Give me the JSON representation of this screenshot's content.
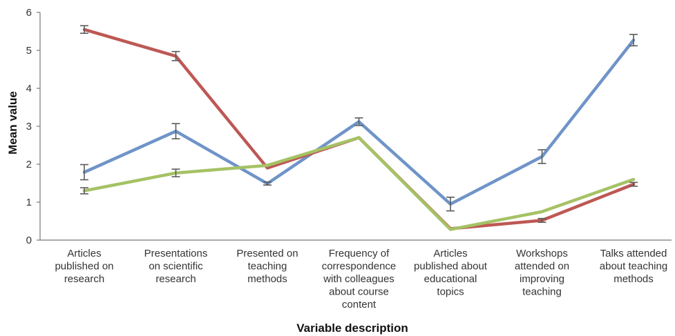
{
  "chart_data": {
    "type": "line",
    "title": "",
    "xlabel": "Variable description",
    "ylabel": "Mean value",
    "ylim": [
      0,
      6
    ],
    "yticks": [
      0,
      1,
      2,
      3,
      4,
      5,
      6
    ],
    "grid": false,
    "legend": "none",
    "categories": [
      "Articles published on research",
      "Presentations on scientific research",
      "Presented on teaching methods",
      "Frequency of correspondence with colleagues about course content",
      "Articles published about educational topics",
      "Workshops attended on improving teaching",
      "Talks attended about teaching methods"
    ],
    "category_lines": [
      [
        "Articles",
        "published on",
        "research"
      ],
      [
        "Presentations",
        "on scientific",
        "research"
      ],
      [
        "Presented on",
        "teaching",
        "methods"
      ],
      [
        "Frequency of",
        "correspondence",
        "with colleagues",
        "about course",
        "content"
      ],
      [
        "Articles",
        "published about",
        "educational",
        "topics"
      ],
      [
        "Workshops",
        "attended on",
        "improving",
        "teaching"
      ],
      [
        "Talks attended",
        "about teaching",
        "methods"
      ]
    ],
    "series": [
      {
        "color": "#6f94c8",
        "values": [
          1.79,
          2.87,
          1.49,
          3.12,
          0.95,
          2.2,
          5.27
        ],
        "errors": [
          0.2,
          0.2,
          0.04,
          0.1,
          0.18,
          0.18,
          0.15
        ],
        "error_bar_indices": [
          0,
          1,
          2,
          3,
          4,
          5,
          6
        ]
      },
      {
        "color": "#bd5854",
        "values": [
          5.55,
          4.85,
          1.9,
          2.7,
          0.3,
          0.52,
          1.47
        ],
        "errors": [
          0.1,
          0.12,
          0.0,
          0.0,
          0.0,
          0.05,
          0.05
        ],
        "error_bar_indices": [
          0,
          1,
          5,
          6
        ]
      },
      {
        "color": "#a5c265",
        "values": [
          1.3,
          1.77,
          1.97,
          2.7,
          0.28,
          0.75,
          1.6
        ],
        "errors": [
          0.08,
          0.1,
          0.0,
          0.0,
          0.0,
          0.0,
          0.0
        ],
        "error_bar_indices": [
          0,
          1
        ]
      }
    ],
    "error_bar_color": "#5a5a5a"
  }
}
